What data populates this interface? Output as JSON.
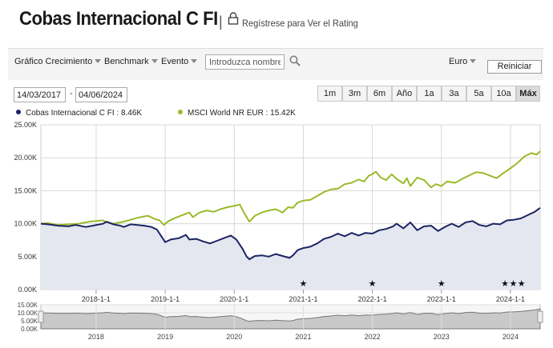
{
  "header": {
    "fund_name": "Cobas Internacional C FI",
    "separator": "|",
    "rating_link": "Regístrese para Ver el Rating"
  },
  "toolbar": {
    "growth_label": "Gráfico Crecimiento",
    "benchmark_label": "Benchmark",
    "event_label": "Evento",
    "search_placeholder": "Introduzca nombre",
    "currency_label": "Euro",
    "reset_label": "Reiniciar"
  },
  "date_range": {
    "start": "14/03/2017",
    "separator": "-",
    "end": "04/06/2024"
  },
  "range_buttons": [
    {
      "label": "1m",
      "active": false
    },
    {
      "label": "3m",
      "active": false
    },
    {
      "label": "6m",
      "active": false
    },
    {
      "label": "Año",
      "active": false
    },
    {
      "label": "1a",
      "active": false
    },
    {
      "label": "3a",
      "active": false
    },
    {
      "label": "5a",
      "active": false
    },
    {
      "label": "10a",
      "active": false
    },
    {
      "label": "Máx",
      "active": true
    }
  ],
  "legend": {
    "fund": "Cobas Internacional C FI : 8.46K",
    "benchmark": "MSCI World NR EUR : 15.42K"
  },
  "colors": {
    "fund": "#1b2463",
    "benchmark": "#9aba2a",
    "fund_fill": "#e4e6f0",
    "grid": "#d8d8d8"
  },
  "chart_data": {
    "type": "line",
    "title": "",
    "xlabel": "",
    "ylabel": "",
    "ylim": [
      0,
      25000
    ],
    "xlim": [
      2017.2,
      2024.43
    ],
    "y_ticks": [
      {
        "value": 0,
        "label": "0.00K"
      },
      {
        "value": 5000,
        "label": "5.00K"
      },
      {
        "value": 10000,
        "label": "10.00K"
      },
      {
        "value": 15000,
        "label": "15.00K"
      },
      {
        "value": 20000,
        "label": "20.00K"
      },
      {
        "value": 25000,
        "label": "25.00K"
      }
    ],
    "x_ticks": [
      {
        "value": 2018.0,
        "label": "2018-1-1"
      },
      {
        "value": 2019.0,
        "label": "2019-1-1"
      },
      {
        "value": 2020.0,
        "label": "2020-1-1"
      },
      {
        "value": 2021.0,
        "label": "2021-1-1"
      },
      {
        "value": 2022.0,
        "label": "2022-1-1"
      },
      {
        "value": 2023.0,
        "label": "2023-1-1"
      },
      {
        "value": 2024.0,
        "label": "2024-1-1"
      }
    ],
    "series": [
      {
        "name": "Cobas Internacional C FI",
        "points": [
          [
            2017.2,
            10000
          ],
          [
            2017.3,
            9900
          ],
          [
            2017.45,
            9700
          ],
          [
            2017.6,
            9600
          ],
          [
            2017.7,
            9800
          ],
          [
            2017.85,
            9500
          ],
          [
            2017.95,
            9700
          ],
          [
            2018.1,
            10000
          ],
          [
            2018.15,
            10300
          ],
          [
            2018.25,
            9900
          ],
          [
            2018.35,
            9700
          ],
          [
            2018.4,
            9500
          ],
          [
            2018.5,
            9900
          ],
          [
            2018.6,
            9800
          ],
          [
            2018.7,
            9700
          ],
          [
            2018.8,
            9500
          ],
          [
            2018.88,
            9100
          ],
          [
            2018.95,
            8000
          ],
          [
            2019.0,
            7200
          ],
          [
            2019.08,
            7600
          ],
          [
            2019.2,
            7800
          ],
          [
            2019.3,
            8300
          ],
          [
            2019.35,
            7600
          ],
          [
            2019.45,
            7700
          ],
          [
            2019.55,
            7300
          ],
          [
            2019.65,
            7000
          ],
          [
            2019.75,
            7400
          ],
          [
            2019.85,
            7800
          ],
          [
            2019.95,
            8200
          ],
          [
            2020.03,
            7600
          ],
          [
            2020.12,
            6200
          ],
          [
            2020.18,
            5000
          ],
          [
            2020.22,
            4600
          ],
          [
            2020.3,
            5100
          ],
          [
            2020.4,
            5200
          ],
          [
            2020.5,
            5000
          ],
          [
            2020.6,
            5400
          ],
          [
            2020.7,
            5100
          ],
          [
            2020.8,
            4800
          ],
          [
            2020.85,
            5200
          ],
          [
            2020.92,
            6000
          ],
          [
            2021.0,
            6300
          ],
          [
            2021.1,
            6500
          ],
          [
            2021.2,
            7000
          ],
          [
            2021.3,
            7700
          ],
          [
            2021.4,
            8000
          ],
          [
            2021.5,
            8500
          ],
          [
            2021.6,
            8100
          ],
          [
            2021.7,
            8600
          ],
          [
            2021.8,
            8200
          ],
          [
            2021.9,
            8600
          ],
          [
            2022.0,
            8500
          ],
          [
            2022.1,
            9000
          ],
          [
            2022.2,
            9200
          ],
          [
            2022.3,
            9600
          ],
          [
            2022.35,
            10000
          ],
          [
            2022.45,
            9300
          ],
          [
            2022.55,
            10200
          ],
          [
            2022.65,
            9000
          ],
          [
            2022.75,
            9600
          ],
          [
            2022.85,
            9700
          ],
          [
            2022.95,
            8900
          ],
          [
            2023.05,
            9500
          ],
          [
            2023.15,
            10000
          ],
          [
            2023.25,
            9500
          ],
          [
            2023.35,
            10200
          ],
          [
            2023.45,
            10400
          ],
          [
            2023.55,
            9800
          ],
          [
            2023.65,
            9600
          ],
          [
            2023.75,
            10000
          ],
          [
            2023.85,
            9900
          ],
          [
            2023.95,
            10500
          ],
          [
            2024.05,
            10600
          ],
          [
            2024.15,
            10800
          ],
          [
            2024.25,
            11300
          ],
          [
            2024.35,
            11800
          ],
          [
            2024.43,
            12400
          ]
        ]
      },
      {
        "name": "MSCI World NR EUR",
        "points": [
          [
            2017.2,
            10000
          ],
          [
            2017.3,
            10100
          ],
          [
            2017.45,
            9800
          ],
          [
            2017.6,
            9900
          ],
          [
            2017.75,
            10000
          ],
          [
            2017.9,
            10300
          ],
          [
            2018.0,
            10400
          ],
          [
            2018.1,
            10500
          ],
          [
            2018.15,
            10200
          ],
          [
            2018.25,
            10000
          ],
          [
            2018.4,
            10300
          ],
          [
            2018.5,
            10600
          ],
          [
            2018.6,
            10900
          ],
          [
            2018.7,
            11100
          ],
          [
            2018.75,
            11200
          ],
          [
            2018.85,
            10700
          ],
          [
            2018.92,
            10500
          ],
          [
            2018.98,
            9800
          ],
          [
            2019.05,
            10400
          ],
          [
            2019.15,
            10900
          ],
          [
            2019.25,
            11300
          ],
          [
            2019.35,
            11700
          ],
          [
            2019.4,
            11000
          ],
          [
            2019.5,
            11700
          ],
          [
            2019.6,
            12000
          ],
          [
            2019.7,
            11800
          ],
          [
            2019.8,
            12200
          ],
          [
            2019.9,
            12500
          ],
          [
            2020.0,
            12700
          ],
          [
            2020.08,
            12900
          ],
          [
            2020.15,
            11500
          ],
          [
            2020.22,
            10300
          ],
          [
            2020.3,
            11200
          ],
          [
            2020.4,
            11700
          ],
          [
            2020.5,
            12000
          ],
          [
            2020.6,
            12200
          ],
          [
            2020.7,
            11700
          ],
          [
            2020.78,
            12500
          ],
          [
            2020.85,
            12400
          ],
          [
            2020.92,
            13200
          ],
          [
            2021.0,
            13500
          ],
          [
            2021.1,
            13600
          ],
          [
            2021.2,
            14200
          ],
          [
            2021.3,
            14800
          ],
          [
            2021.4,
            15200
          ],
          [
            2021.5,
            15300
          ],
          [
            2021.6,
            16000
          ],
          [
            2021.7,
            16200
          ],
          [
            2021.8,
            16700
          ],
          [
            2021.88,
            16400
          ],
          [
            2021.95,
            17300
          ],
          [
            2022.0,
            17500
          ],
          [
            2022.05,
            17900
          ],
          [
            2022.12,
            17000
          ],
          [
            2022.2,
            16600
          ],
          [
            2022.28,
            17500
          ],
          [
            2022.35,
            16800
          ],
          [
            2022.45,
            16100
          ],
          [
            2022.5,
            16900
          ],
          [
            2022.55,
            15700
          ],
          [
            2022.65,
            17000
          ],
          [
            2022.75,
            16600
          ],
          [
            2022.85,
            15500
          ],
          [
            2022.92,
            16000
          ],
          [
            2023.0,
            15700
          ],
          [
            2023.08,
            16400
          ],
          [
            2023.2,
            16200
          ],
          [
            2023.3,
            16800
          ],
          [
            2023.4,
            17300
          ],
          [
            2023.5,
            17800
          ],
          [
            2023.6,
            17700
          ],
          [
            2023.7,
            17300
          ],
          [
            2023.8,
            16900
          ],
          [
            2023.9,
            17700
          ],
          [
            2024.0,
            18400
          ],
          [
            2024.1,
            19200
          ],
          [
            2024.2,
            20200
          ],
          [
            2024.3,
            20700
          ],
          [
            2024.38,
            20500
          ],
          [
            2024.43,
            21000
          ]
        ]
      }
    ],
    "events": [
      {
        "x": 2021.0,
        "label": "★"
      },
      {
        "x": 2022.0,
        "label": "★"
      },
      {
        "x": 2023.0,
        "label": "★"
      },
      {
        "x": 2023.92,
        "label": "★"
      },
      {
        "x": 2024.04,
        "label": "★"
      },
      {
        "x": 2024.16,
        "label": "★"
      }
    ],
    "navigator": {
      "ylim": [
        0,
        15000
      ],
      "y_ticks": [
        {
          "value": 0,
          "label": "0.00K"
        },
        {
          "value": 5000,
          "label": "5.00K"
        },
        {
          "value": 10000,
          "label": "10.00K"
        },
        {
          "value": 15000,
          "label": "15.00K"
        }
      ],
      "x_ticks": [
        {
          "value": 2018.0,
          "label": "2018"
        },
        {
          "value": 2019.0,
          "label": "2019"
        },
        {
          "value": 2020.0,
          "label": "2020"
        },
        {
          "value": 2021.0,
          "label": "2021"
        },
        {
          "value": 2022.0,
          "label": "2022"
        },
        {
          "value": 2023.0,
          "label": "2023"
        },
        {
          "value": 2024.0,
          "label": "2024"
        }
      ]
    }
  }
}
